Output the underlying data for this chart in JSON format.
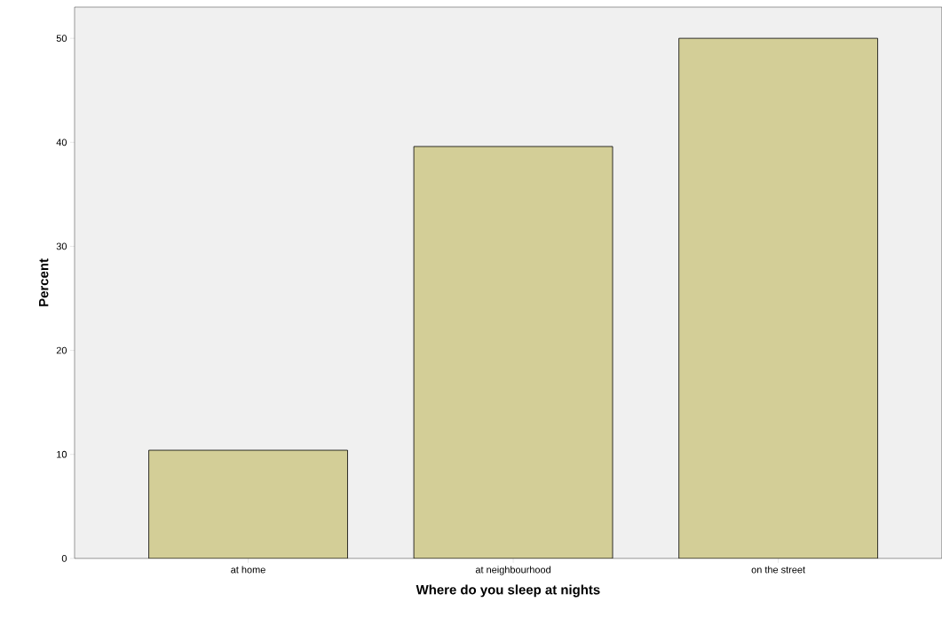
{
  "chart_data": {
    "type": "bar",
    "xlabel": "Where do you sleep at nights",
    "ylabel": "Percent",
    "categories": [
      "at home",
      "at neighbourhood",
      "on the street"
    ],
    "values": [
      10.4,
      39.6,
      50.0
    ],
    "color": "#d3ce97",
    "ylim": [
      0,
      53
    ],
    "yticks": [
      0,
      10,
      20,
      30,
      40,
      50
    ],
    "grid": false
  }
}
